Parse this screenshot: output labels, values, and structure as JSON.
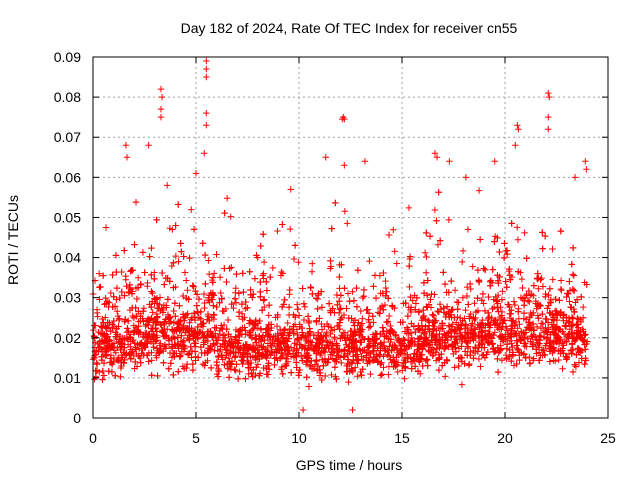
{
  "chart_data": {
    "type": "scatter",
    "title": "Day 182 of 2024, Rate Of TEC Index for receiver cn55",
    "xlabel": "GPS time / hours",
    "ylabel": "ROTI / TECUs",
    "xlim": [
      0,
      25
    ],
    "ylim": [
      0,
      0.09
    ],
    "xticks": [
      0,
      5,
      10,
      15,
      20,
      25
    ],
    "xtick_labels": [
      "0",
      "5",
      "10",
      "15",
      "20",
      "25"
    ],
    "yticks": [
      0,
      0.01,
      0.02,
      0.03,
      0.04,
      0.05,
      0.06,
      0.07,
      0.08,
      0.09
    ],
    "ytick_labels": [
      "0",
      "0.01",
      "0.02",
      "0.03",
      "0.04",
      "0.05",
      "0.06",
      "0.07",
      "0.08",
      "0.09"
    ],
    "grid": true,
    "marker": "+",
    "color": "#ff0000",
    "series": [
      {
        "name": "ROTI",
        "x_range": [
          0,
          24
        ],
        "typical_range": [
          0.005,
          0.03
        ],
        "notable_points": [
          {
            "x": 0.3,
            "y": 0.036
          },
          {
            "x": 1.6,
            "y": 0.068
          },
          {
            "x": 1.65,
            "y": 0.065
          },
          {
            "x": 2.7,
            "y": 0.068
          },
          {
            "x": 3.3,
            "y": 0.082
          },
          {
            "x": 3.35,
            "y": 0.08
          },
          {
            "x": 3.3,
            "y": 0.077
          },
          {
            "x": 3.3,
            "y": 0.075
          },
          {
            "x": 3.6,
            "y": 0.058
          },
          {
            "x": 5.0,
            "y": 0.061
          },
          {
            "x": 5.5,
            "y": 0.089
          },
          {
            "x": 5.5,
            "y": 0.087
          },
          {
            "x": 5.5,
            "y": 0.085
          },
          {
            "x": 5.5,
            "y": 0.076
          },
          {
            "x": 5.5,
            "y": 0.073
          },
          {
            "x": 5.4,
            "y": 0.066
          },
          {
            "x": 9.6,
            "y": 0.057
          },
          {
            "x": 11.3,
            "y": 0.065
          },
          {
            "x": 12.1,
            "y": 0.0745
          },
          {
            "x": 12.15,
            "y": 0.075
          },
          {
            "x": 12.2,
            "y": 0.0745
          },
          {
            "x": 12.2,
            "y": 0.063
          },
          {
            "x": 13.2,
            "y": 0.064
          },
          {
            "x": 16.6,
            "y": 0.066
          },
          {
            "x": 16.7,
            "y": 0.065
          },
          {
            "x": 17.3,
            "y": 0.064
          },
          {
            "x": 18.1,
            "y": 0.06
          },
          {
            "x": 19.5,
            "y": 0.064
          },
          {
            "x": 20.6,
            "y": 0.073
          },
          {
            "x": 20.65,
            "y": 0.072
          },
          {
            "x": 20.5,
            "y": 0.068
          },
          {
            "x": 22.1,
            "y": 0.081
          },
          {
            "x": 22.15,
            "y": 0.08
          },
          {
            "x": 22.1,
            "y": 0.075
          },
          {
            "x": 22.1,
            "y": 0.072
          },
          {
            "x": 23.4,
            "y": 0.06
          },
          {
            "x": 23.9,
            "y": 0.064
          },
          {
            "x": 23.95,
            "y": 0.062
          },
          {
            "x": 12.6,
            "y": 0.002
          },
          {
            "x": 10.2,
            "y": 0.002
          }
        ]
      }
    ]
  }
}
